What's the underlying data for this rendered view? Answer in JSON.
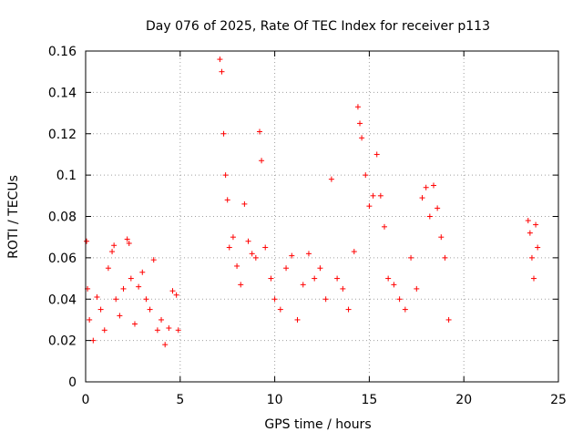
{
  "chart_data": {
    "type": "scatter",
    "title": "Day 076 of 2025, Rate Of TEC Index for receiver p113",
    "xlabel": "GPS time / hours",
    "ylabel": "ROTI / TECUs",
    "xlim": [
      0,
      25
    ],
    "ylim": [
      0,
      0.16
    ],
    "xticks": [
      0,
      5,
      10,
      15,
      20,
      25
    ],
    "yticks": [
      0,
      0.02,
      0.04,
      0.06,
      0.08,
      0.1,
      0.12,
      0.14,
      0.16
    ],
    "xtick_labels": [
      "0",
      "5",
      "10",
      "15",
      "20",
      "25"
    ],
    "ytick_labels": [
      "0",
      "0.02",
      "0.04",
      "0.06",
      "0.08",
      "0.1",
      "0.12",
      "0.14",
      "0.16"
    ],
    "grid": true,
    "marker": "+",
    "marker_color": "#ff0000",
    "series": [
      {
        "x": [
          0.05,
          0.1,
          0.2,
          0.4,
          0.6,
          0.8,
          1.0,
          1.2,
          1.4,
          1.5,
          1.6,
          1.8,
          2.0,
          2.2,
          2.3,
          2.4,
          2.6,
          2.8,
          3.0,
          3.2,
          3.4,
          3.6,
          3.8,
          4.0,
          4.2,
          4.4,
          4.6,
          4.8,
          4.9,
          7.1,
          7.2,
          7.3,
          7.4,
          7.5,
          7.6,
          7.8,
          8.0,
          8.2,
          8.4,
          8.6,
          8.8,
          9.0,
          9.2,
          9.3,
          9.5,
          9.8,
          10.0,
          10.3,
          10.6,
          10.9,
          11.2,
          11.5,
          11.8,
          12.1,
          12.4,
          12.7,
          13.0,
          13.3,
          13.6,
          13.9,
          14.2,
          14.4,
          14.5,
          14.6,
          14.8,
          15.0,
          15.2,
          15.4,
          15.6,
          15.8,
          16.0,
          16.3,
          16.6,
          16.9,
          17.2,
          17.5,
          17.8,
          18.0,
          18.2,
          18.4,
          18.6,
          18.8,
          19.0,
          19.2,
          23.4,
          23.5,
          23.6,
          23.7,
          23.8,
          23.9
        ],
        "y": [
          0.068,
          0.045,
          0.03,
          0.02,
          0.041,
          0.035,
          0.025,
          0.055,
          0.063,
          0.066,
          0.04,
          0.032,
          0.045,
          0.069,
          0.067,
          0.05,
          0.028,
          0.046,
          0.053,
          0.04,
          0.035,
          0.059,
          0.025,
          0.03,
          0.018,
          0.026,
          0.044,
          0.042,
          0.025,
          0.156,
          0.15,
          0.12,
          0.1,
          0.088,
          0.065,
          0.07,
          0.056,
          0.047,
          0.086,
          0.068,
          0.062,
          0.06,
          0.121,
          0.107,
          0.065,
          0.05,
          0.04,
          0.035,
          0.055,
          0.061,
          0.03,
          0.047,
          0.062,
          0.05,
          0.055,
          0.04,
          0.098,
          0.05,
          0.045,
          0.035,
          0.063,
          0.133,
          0.125,
          0.118,
          0.1,
          0.085,
          0.09,
          0.11,
          0.09,
          0.075,
          0.05,
          0.047,
          0.04,
          0.035,
          0.06,
          0.045,
          0.089,
          0.094,
          0.08,
          0.095,
          0.084,
          0.07,
          0.06,
          0.03,
          0.078,
          0.072,
          0.06,
          0.05,
          0.076,
          0.065
        ]
      }
    ]
  }
}
